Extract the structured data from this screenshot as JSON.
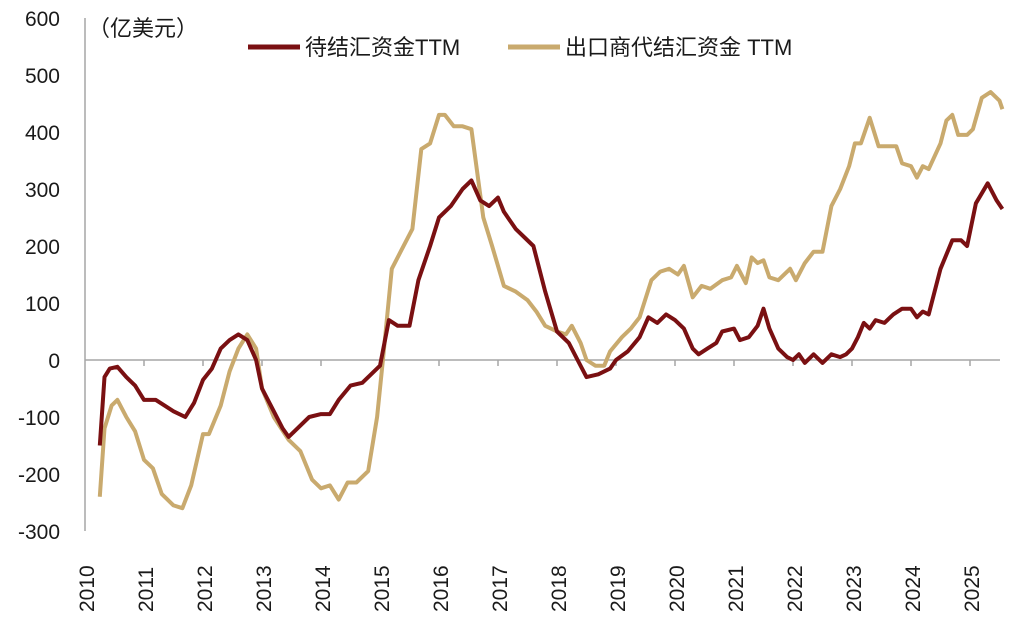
{
  "chart_data": {
    "type": "line",
    "unit_label": "（亿美元）",
    "xlabel": "",
    "ylabel": "",
    "xlim": [
      2010,
      2025.6
    ],
    "ylim": [
      -300,
      600
    ],
    "y_ticks": [
      600,
      500,
      400,
      300,
      200,
      100,
      0,
      -100,
      -200,
      -300
    ],
    "x_ticks": [
      "2010",
      "2011",
      "2012",
      "2013",
      "2014",
      "2015",
      "2016",
      "2017",
      "2018",
      "2019",
      "2020",
      "2021",
      "2022",
      "2023",
      "2024",
      "2025"
    ],
    "grid": false,
    "legend_position": "top",
    "colors": {
      "series_1": "#7a1012",
      "series_2": "#c9aa6e",
      "axis": "#a6a6a6"
    },
    "series": [
      {
        "name": "待结汇资金TTM",
        "x": [
          2010.25,
          2010.33,
          2010.42,
          2010.55,
          2010.7,
          2010.85,
          2011.0,
          2011.2,
          2011.35,
          2011.5,
          2011.7,
          2011.85,
          2012.0,
          2012.15,
          2012.3,
          2012.45,
          2012.6,
          2012.75,
          2012.9,
          2013.0,
          2013.2,
          2013.35,
          2013.45,
          2013.6,
          2013.8,
          2014.0,
          2014.15,
          2014.3,
          2014.5,
          2014.7,
          2014.85,
          2015.0,
          2015.15,
          2015.3,
          2015.5,
          2015.65,
          2015.85,
          2016.0,
          2016.2,
          2016.4,
          2016.55,
          2016.7,
          2016.85,
          2017.0,
          2017.1,
          2017.3,
          2017.45,
          2017.6,
          2017.8,
          2018.0,
          2018.2,
          2018.35,
          2018.5,
          2018.7,
          2018.9,
          2019.0,
          2019.2,
          2019.4,
          2019.55,
          2019.7,
          2019.85,
          2020.0,
          2020.15,
          2020.3,
          2020.4,
          2020.55,
          2020.7,
          2020.8,
          2021.0,
          2021.1,
          2021.25,
          2021.4,
          2021.5,
          2021.6,
          2021.75,
          2021.9,
          2022.0,
          2022.1,
          2022.2,
          2022.35,
          2022.5,
          2022.65,
          2022.8,
          2022.9,
          2023.0,
          2023.1,
          2023.2,
          2023.3,
          2023.4,
          2023.55,
          2023.7,
          2023.85,
          2024.0,
          2024.1,
          2024.2,
          2024.3,
          2024.5,
          2024.7,
          2024.85,
          2024.95,
          2025.1,
          2025.3,
          2025.45,
          2025.55
        ],
        "values": [
          -150,
          -30,
          -15,
          -12,
          -30,
          -45,
          -70,
          -70,
          -80,
          -90,
          -100,
          -75,
          -35,
          -15,
          20,
          35,
          45,
          35,
          0,
          -50,
          -90,
          -120,
          -135,
          -120,
          -100,
          -95,
          -95,
          -70,
          -45,
          -40,
          -25,
          -10,
          70,
          60,
          60,
          140,
          200,
          250,
          270,
          300,
          315,
          280,
          270,
          285,
          260,
          230,
          215,
          200,
          120,
          50,
          30,
          0,
          -30,
          -25,
          -15,
          0,
          15,
          40,
          75,
          65,
          80,
          70,
          55,
          20,
          10,
          20,
          30,
          50,
          55,
          35,
          40,
          60,
          90,
          55,
          20,
          5,
          0,
          10,
          -5,
          10,
          -5,
          10,
          5,
          10,
          20,
          40,
          65,
          55,
          70,
          65,
          80,
          90,
          90,
          75,
          85,
          80,
          160,
          210,
          210,
          200,
          275,
          310,
          280,
          265
        ]
      },
      {
        "name": "出口商代结汇资金 TTM",
        "x": [
          2010.25,
          2010.33,
          2010.45,
          2010.55,
          2010.7,
          2010.85,
          2011.0,
          2011.15,
          2011.3,
          2011.5,
          2011.65,
          2011.8,
          2012.0,
          2012.1,
          2012.3,
          2012.45,
          2012.6,
          2012.75,
          2012.9,
          2013.0,
          2013.2,
          2013.45,
          2013.65,
          2013.85,
          2014.0,
          2014.15,
          2014.3,
          2014.45,
          2014.6,
          2014.8,
          2014.95,
          2015.05,
          2015.2,
          2015.35,
          2015.55,
          2015.7,
          2015.85,
          2016.0,
          2016.1,
          2016.25,
          2016.4,
          2016.55,
          2016.75,
          2016.9,
          2017.1,
          2017.3,
          2017.5,
          2017.65,
          2017.8,
          2018.0,
          2018.15,
          2018.25,
          2018.4,
          2018.5,
          2018.65,
          2018.8,
          2018.9,
          2019.1,
          2019.25,
          2019.4,
          2019.6,
          2019.75,
          2019.9,
          2020.05,
          2020.15,
          2020.3,
          2020.45,
          2020.6,
          2020.8,
          2020.95,
          2021.05,
          2021.2,
          2021.3,
          2021.4,
          2021.5,
          2021.6,
          2021.75,
          2021.95,
          2022.05,
          2022.2,
          2022.35,
          2022.5,
          2022.65,
          2022.8,
          2022.95,
          2023.05,
          2023.15,
          2023.3,
          2023.45,
          2023.6,
          2023.75,
          2023.85,
          2024.0,
          2024.1,
          2024.2,
          2024.3,
          2024.5,
          2024.6,
          2024.7,
          2024.8,
          2024.95,
          2025.05,
          2025.2,
          2025.35,
          2025.5,
          2025.55
        ],
        "values": [
          -240,
          -120,
          -80,
          -70,
          -100,
          -125,
          -175,
          -190,
          -235,
          -255,
          -260,
          -220,
          -130,
          -130,
          -80,
          -20,
          20,
          45,
          20,
          -50,
          -100,
          -140,
          -160,
          -210,
          -225,
          -220,
          -245,
          -215,
          -215,
          -195,
          -100,
          0,
          160,
          190,
          230,
          370,
          380,
          430,
          430,
          410,
          410,
          405,
          250,
          200,
          130,
          120,
          105,
          85,
          60,
          50,
          45,
          60,
          30,
          0,
          -10,
          -10,
          15,
          40,
          55,
          75,
          140,
          155,
          160,
          150,
          165,
          110,
          130,
          125,
          140,
          145,
          165,
          135,
          180,
          170,
          175,
          145,
          140,
          160,
          140,
          170,
          190,
          190,
          270,
          300,
          340,
          380,
          380,
          425,
          375,
          375,
          375,
          345,
          340,
          320,
          340,
          335,
          380,
          420,
          430,
          395,
          395,
          405,
          460,
          470,
          455,
          440
        ]
      }
    ]
  }
}
